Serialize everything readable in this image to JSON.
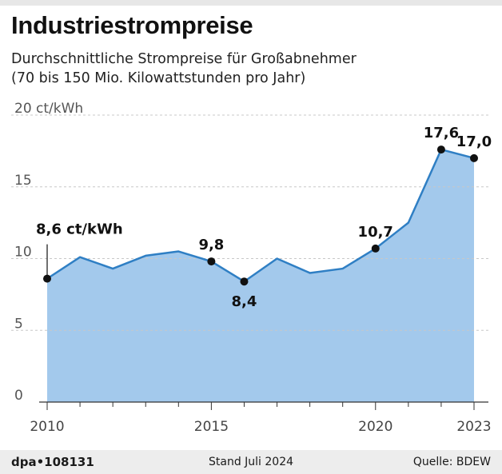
{
  "header": {
    "title": "Industriestrompreise",
    "subtitle_line1": "Durchschnittliche Strompreise für Großabnehmer",
    "subtitle_line2": "(70 bis 150 Mio. Kilowattstunden pro Jahr)"
  },
  "colors": {
    "area": "#a3c9ec",
    "line": "#2f7fc4",
    "grid": "#c8c8c8",
    "text": "#1a1a1a"
  },
  "chart_data": {
    "type": "area",
    "title": "Industriestrompreise",
    "unit": "ct/kWh",
    "x": [
      2010,
      2011,
      2012,
      2013,
      2014,
      2015,
      2016,
      2017,
      2018,
      2019,
      2020,
      2021,
      2022,
      2023
    ],
    "values": [
      8.6,
      10.1,
      9.3,
      10.2,
      10.5,
      9.8,
      8.4,
      10.0,
      9.0,
      9.3,
      10.7,
      12.5,
      17.6,
      17.0
    ],
    "ylim": [
      0,
      20
    ],
    "yticks": [
      "0",
      "5",
      "10",
      "15",
      "20 ct/kWh"
    ],
    "ytick_values": [
      0,
      5,
      10,
      15,
      20
    ],
    "xticks": [
      "2010",
      "2015",
      "2020",
      "2023"
    ],
    "xtick_values": [
      2010,
      2015,
      2020,
      2023
    ],
    "grid": true,
    "labels": [
      {
        "x": 2010,
        "value": 8.6,
        "text": "8,6 ct/kWh",
        "pos": "above-leader"
      },
      {
        "x": 2015,
        "value": 9.8,
        "text": "9,8",
        "pos": "above"
      },
      {
        "x": 2016,
        "value": 8.4,
        "text": "8,4",
        "pos": "below"
      },
      {
        "x": 2020,
        "value": 10.7,
        "text": "10,7",
        "pos": "above"
      },
      {
        "x": 2022,
        "value": 17.6,
        "text": "17,6",
        "pos": "above"
      },
      {
        "x": 2023,
        "value": 17.0,
        "text": "17,0",
        "pos": "above"
      }
    ]
  },
  "footer": {
    "brand": "dpa•108131",
    "stand": "Stand Juli 2024",
    "source": "Quelle: BDEW"
  }
}
